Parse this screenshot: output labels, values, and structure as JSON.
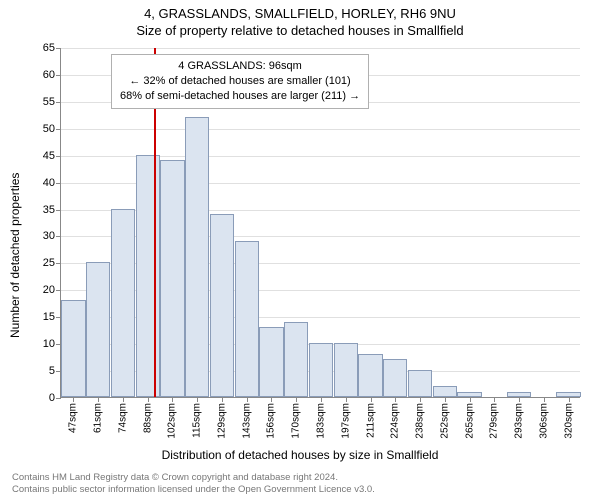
{
  "title": {
    "line1": "4, GRASSLANDS, SMALLFIELD, HORLEY, RH6 9NU",
    "line2": "Size of property relative to detached houses in Smallfield"
  },
  "axes": {
    "y_title": "Number of detached properties",
    "x_title": "Distribution of detached houses by size in Smallfield",
    "y_min": 0,
    "y_max": 65,
    "y_step": 5,
    "x_labels": [
      "47sqm",
      "61sqm",
      "74sqm",
      "88sqm",
      "102sqm",
      "115sqm",
      "129sqm",
      "143sqm",
      "156sqm",
      "170sqm",
      "183sqm",
      "197sqm",
      "211sqm",
      "224sqm",
      "238sqm",
      "252sqm",
      "265sqm",
      "279sqm",
      "293sqm",
      "306sqm",
      "320sqm"
    ]
  },
  "chart": {
    "type": "histogram",
    "bar_color": "#dbe4f0",
    "bar_border": "#8a9cb8",
    "grid_color": "#e0e0e0",
    "values": [
      18,
      25,
      35,
      45,
      44,
      52,
      34,
      29,
      13,
      14,
      10,
      10,
      8,
      7,
      5,
      2,
      1,
      0,
      1,
      0,
      1
    ],
    "reference_line": {
      "color": "#cc0000",
      "x_value": 96,
      "x_min": 47,
      "x_max": 320
    }
  },
  "callout": {
    "line1": "4 GRASSLANDS: 96sqm",
    "line2": "← 32% of detached houses are smaller (101)",
    "line3": "68% of semi-detached houses are larger (211) →"
  },
  "footer": {
    "line1": "Contains HM Land Registry data © Crown copyright and database right 2024.",
    "line2": "Contains public sector information licensed under the Open Government Licence v3.0."
  },
  "style": {
    "title_fontsize": 13,
    "axis_title_fontsize": 12,
    "tick_fontsize": 11,
    "footer_color": "#777777"
  }
}
